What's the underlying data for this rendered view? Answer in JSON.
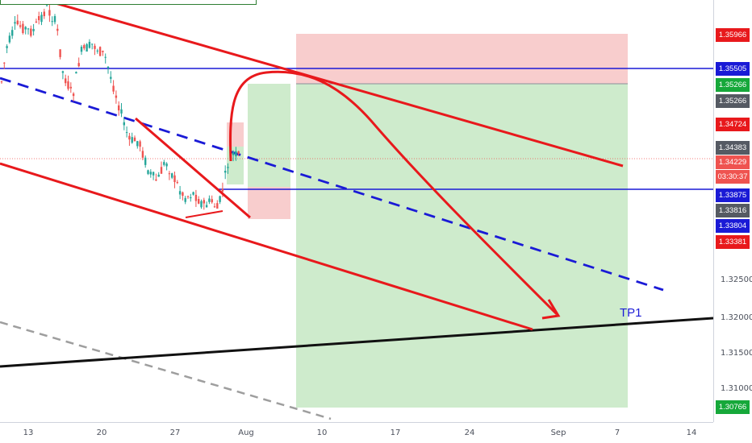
{
  "chart_data": {
    "type": "candlestick",
    "symbol_note": "",
    "x_ticks": [
      "13",
      "20",
      "27",
      "Aug",
      "10",
      "17",
      "24",
      "Sep",
      "7",
      "14"
    ],
    "y_ticks": [
      "1.32500",
      "1.32000",
      "1.31500",
      "1.31000"
    ],
    "ylim": [
      1.3045,
      1.3625
    ],
    "price_tags": [
      {
        "label": "1.35966",
        "value": 1.35966,
        "color": "#e8191c"
      },
      {
        "label": "1.35505",
        "value": 1.35505,
        "color": "#1a1ad6"
      },
      {
        "label": "1.35266",
        "value": 1.35266,
        "color": "#16a83a"
      },
      {
        "label": "1.35266",
        "value": 1.35266,
        "color": "#555a63"
      },
      {
        "label": "1.34724",
        "value": 1.34724,
        "color": "#e8191c"
      },
      {
        "label": "1.34383",
        "value": 1.34383,
        "color": "#555a63"
      },
      {
        "label": "1.34229",
        "value": 1.34229,
        "color": "#ef5350"
      },
      {
        "label": "03:30:37",
        "value": 1.34229,
        "color": "#ef5350"
      },
      {
        "label": "1.33875",
        "value": 1.33875,
        "color": "#1a1ad6"
      },
      {
        "label": "1.33816",
        "value": 1.33816,
        "color": "#555a63"
      },
      {
        "label": "1.33804",
        "value": 1.33804,
        "color": "#1a1ad6"
      },
      {
        "label": "1.33381",
        "value": 1.33381,
        "color": "#e8191c"
      },
      {
        "label": "1.30766",
        "value": 1.30766,
        "color": "#16a83a"
      }
    ],
    "annotations": {
      "target_label": "TP1"
    },
    "horizontal_lines": [
      {
        "value": 1.35505,
        "color": "#1a1ad6"
      },
      {
        "value": 1.33875,
        "color": "#1a1ad6"
      }
    ],
    "colors": {
      "up": "#26a69a",
      "down": "#ef5350",
      "stop_zone": "#f6c1c1",
      "target_zone": "#c9e9c6",
      "channel": "#e8191c",
      "trend_dashed": "#1a1ad6",
      "support": "#111111"
    }
  }
}
